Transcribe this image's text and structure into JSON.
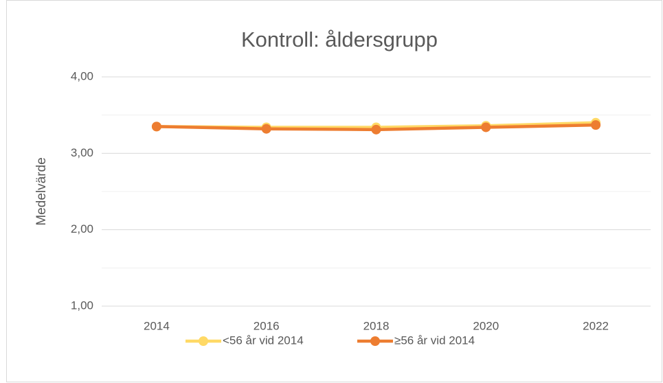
{
  "chart_data": {
    "type": "line",
    "title": "Kontroll: åldersgrupp",
    "y_label": "Medelvärde",
    "categories": [
      "2014",
      "2016",
      "2018",
      "2020",
      "2022"
    ],
    "series": [
      {
        "name": "<56 år vid 2014",
        "color": "#ffd966",
        "values": [
          3.35,
          3.34,
          3.34,
          3.36,
          3.4
        ]
      },
      {
        "name": "≥56 år vid 2014",
        "color": "#ed7d31",
        "values": [
          3.35,
          3.32,
          3.31,
          3.34,
          3.37
        ]
      }
    ],
    "ylim": [
      1,
      4
    ],
    "yticks": [
      {
        "value": 1,
        "label": "1,00"
      },
      {
        "value": 2,
        "label": "2,00"
      },
      {
        "value": 3,
        "label": "3,00"
      },
      {
        "value": 4,
        "label": "4,00"
      }
    ],
    "minor_yticks": [
      1.5,
      2.5,
      3.5
    ],
    "grid": true,
    "legend": "bottom"
  }
}
